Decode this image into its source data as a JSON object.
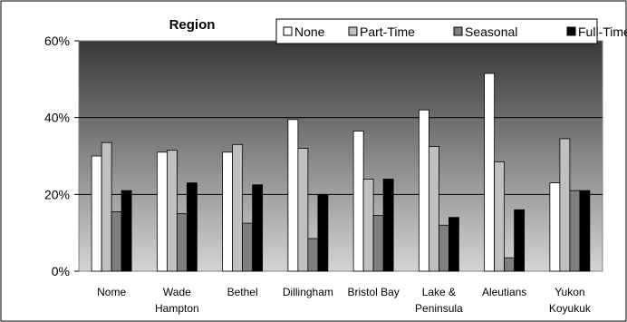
{
  "chart_data": {
    "type": "bar",
    "title": "Region",
    "categories": [
      [
        "Nome"
      ],
      [
        "Wade",
        "Hampton"
      ],
      [
        "Bethel"
      ],
      [
        "Dillingham"
      ],
      [
        "Bristol Bay"
      ],
      [
        "Lake &",
        "Peninsula"
      ],
      [
        "Aleutians"
      ],
      [
        "Yukon",
        "Koyukuk"
      ]
    ],
    "series": [
      {
        "name": "None",
        "color": "#ffffff",
        "values": [
          30,
          31,
          31,
          39.5,
          36.5,
          42,
          51.5,
          23
        ]
      },
      {
        "name": "Part-Time",
        "color": "#c0c0c0",
        "values": [
          33.5,
          31.5,
          33,
          32,
          24,
          32.5,
          28.5,
          34.5
        ]
      },
      {
        "name": "Seasonal",
        "color": "#7f7f7f",
        "values": [
          15.5,
          15,
          12.5,
          8.5,
          14.5,
          12,
          3.5,
          21
        ]
      },
      {
        "name": "Full-Time",
        "color": "#000000",
        "values": [
          21,
          23,
          22.5,
          20,
          24,
          14,
          16,
          21
        ]
      }
    ],
    "y_ticks": [
      "0%",
      "20%",
      "40%",
      "60%"
    ],
    "ylim": [
      0,
      60
    ],
    "grid": true,
    "legend_position": "top-right",
    "plot_background": "gradient dark gray (top) to light gray (bottom)"
  }
}
